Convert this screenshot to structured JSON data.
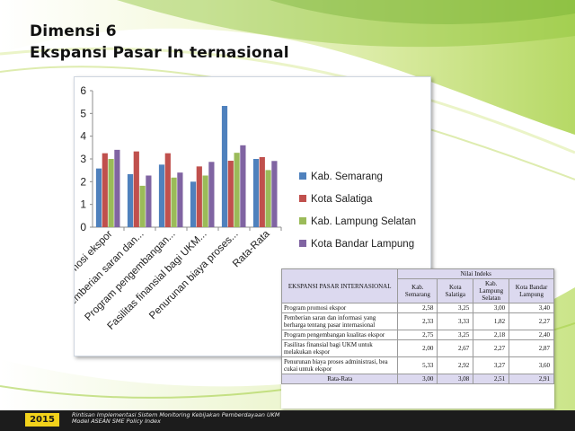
{
  "slide": {
    "title_line1": "Dimensi 6",
    "title_line2": "Ekspansi Pasar In ternasional"
  },
  "chart_data": {
    "type": "bar",
    "categories": [
      "Program promosi ekspor",
      "Pemberian saran dan...",
      "Program pengembangan...",
      "Fasilitas finansial bagi UKM...",
      "Penurunan biaya proses...",
      "Rata-Rata"
    ],
    "series": [
      {
        "name": "Kab. Semarang",
        "color": "#4f81bd",
        "values": [
          2.58,
          2.33,
          2.75,
          2.0,
          5.33,
          3.0
        ]
      },
      {
        "name": "Kota Salatiga",
        "color": "#c0504d",
        "values": [
          3.25,
          3.33,
          3.25,
          2.67,
          2.92,
          3.08
        ]
      },
      {
        "name": "Kab. Lampung Selatan",
        "color": "#9bbb59",
        "values": [
          3.0,
          1.82,
          2.18,
          2.27,
          3.27,
          2.51
        ]
      },
      {
        "name": "Kota Bandar Lampung",
        "color": "#8064a2",
        "values": [
          3.4,
          2.27,
          2.4,
          2.87,
          3.6,
          2.91
        ]
      }
    ],
    "ylim": [
      0,
      6
    ],
    "yticks": [
      "0",
      "1",
      "2",
      "3",
      "4",
      "5",
      "6"
    ],
    "grid": false,
    "legend_position": "right"
  },
  "table": {
    "header_col": "EKSPANSI PASAR INTERNASIONAL",
    "header_group": "Nilai Indeks",
    "columns": [
      "Kab. Semarang",
      "Kota Salatiga",
      "Kab. Lampung Selatan",
      "Kota Bandar Lampung"
    ],
    "rows": [
      {
        "label": "Program promosi ekspor",
        "values": [
          "2,58",
          "3,25",
          "3,00",
          "3,40"
        ]
      },
      {
        "label": "Pemberian saran dan informasi yang berharga tentang pasar internasional",
        "values": [
          "2,33",
          "3,33",
          "1,82",
          "2,27"
        ]
      },
      {
        "label": "Program pengembangan kualitas ekspor",
        "values": [
          "2,75",
          "3,25",
          "2,18",
          "2,40"
        ]
      },
      {
        "label": "Fasilitas finansial bagi UKM untuk melakukan ekspor",
        "values": [
          "2,00",
          "2,67",
          "2,27",
          "2,87"
        ]
      },
      {
        "label": "Penurunan biaya proses administrasi, bea cukai untuk ekspor",
        "values": [
          "5,33",
          "2,92",
          "3,27",
          "3,60"
        ]
      }
    ],
    "total": {
      "label": "Rata-Rata",
      "values": [
        "3,00",
        "3,08",
        "2,51",
        "2,91"
      ]
    }
  },
  "footer": {
    "year": "2015",
    "line1": "Rintisan Implementasi Sistem Monitoring Kebijakan Pemberdayaan UKM",
    "line2": "Model ASEAN SME Policy Index"
  }
}
